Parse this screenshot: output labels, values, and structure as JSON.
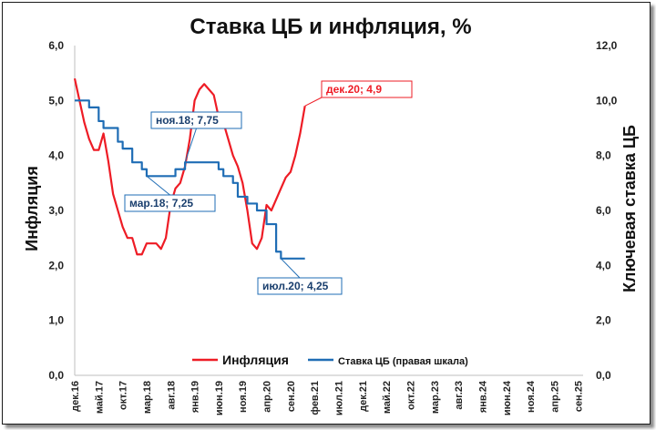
{
  "chart_data": {
    "type": "line",
    "title": "Ставка ЦБ и инфляция, %",
    "ylabel_left": "Инфляция",
    "ylabel_right": "Ключевая ставка ЦБ",
    "left_axis": {
      "min": 0,
      "max": 6,
      "step": 1,
      "tick_labels": [
        "0,0",
        "1,0",
        "2,0",
        "3,0",
        "4,0",
        "5,0",
        "6,0"
      ]
    },
    "right_axis": {
      "min": 0,
      "max": 12,
      "step": 2,
      "tick_labels": [
        "0,0",
        "2,0",
        "4,0",
        "6,0",
        "8,0",
        "10,0",
        "12,0"
      ]
    },
    "x_axis": {
      "start": "2016-12",
      "end": "2025-10",
      "tick_labels": [
        "дек.16",
        "май.17",
        "окт.17",
        "мар.18",
        "авг.18",
        "янв.19",
        "июн.19",
        "ноя.19",
        "апр.20",
        "сен.20",
        "фев.21",
        "июл.21",
        "дек.21",
        "май.22",
        "окт.22",
        "мар.23",
        "авг.23",
        "янв.24",
        "июн.24",
        "ноя.24",
        "апр.25",
        "сен.25"
      ]
    },
    "grid": false,
    "legend_position": "bottom",
    "series": [
      {
        "name": "Инфляция",
        "axis": "left",
        "color": "#ee1c25",
        "x": [
          "2016-12",
          "2017-01",
          "2017-02",
          "2017-03",
          "2017-04",
          "2017-05",
          "2017-06",
          "2017-07",
          "2017-08",
          "2017-09",
          "2017-10",
          "2017-11",
          "2017-12",
          "2018-01",
          "2018-02",
          "2018-03",
          "2018-04",
          "2018-05",
          "2018-06",
          "2018-07",
          "2018-08",
          "2018-09",
          "2018-10",
          "2018-11",
          "2018-12",
          "2019-01",
          "2019-02",
          "2019-03",
          "2019-04",
          "2019-05",
          "2019-06",
          "2019-07",
          "2019-08",
          "2019-09",
          "2019-10",
          "2019-11",
          "2019-12",
          "2020-01",
          "2020-02",
          "2020-03",
          "2020-04",
          "2020-05",
          "2020-06",
          "2020-07",
          "2020-08",
          "2020-09",
          "2020-10",
          "2020-11",
          "2020-12"
        ],
        "values": [
          5.4,
          5.0,
          4.6,
          4.3,
          4.1,
          4.1,
          4.4,
          3.9,
          3.3,
          3.0,
          2.7,
          2.5,
          2.5,
          2.2,
          2.2,
          2.4,
          2.4,
          2.4,
          2.3,
          2.5,
          3.1,
          3.4,
          3.5,
          3.8,
          4.3,
          5.0,
          5.2,
          5.3,
          5.2,
          5.1,
          4.7,
          4.6,
          4.3,
          4.0,
          3.8,
          3.5,
          3.0,
          2.4,
          2.3,
          2.5,
          3.1,
          3.0,
          3.2,
          3.4,
          3.6,
          3.7,
          4.0,
          4.4,
          4.9
        ]
      },
      {
        "name": "Ставка ЦБ (правая шкала)",
        "axis": "right",
        "color": "#1f6db5",
        "x": [
          "2016-12",
          "2017-01",
          "2017-02",
          "2017-03",
          "2017-04",
          "2017-05",
          "2017-06",
          "2017-07",
          "2017-08",
          "2017-09",
          "2017-10",
          "2017-11",
          "2017-12",
          "2018-01",
          "2018-02",
          "2018-03",
          "2018-04",
          "2018-05",
          "2018-06",
          "2018-07",
          "2018-08",
          "2018-09",
          "2018-10",
          "2018-11",
          "2018-12",
          "2019-01",
          "2019-02",
          "2019-03",
          "2019-04",
          "2019-05",
          "2019-06",
          "2019-07",
          "2019-08",
          "2019-09",
          "2019-10",
          "2019-11",
          "2019-12",
          "2020-01",
          "2020-02",
          "2020-03",
          "2020-04",
          "2020-05",
          "2020-06",
          "2020-07",
          "2020-08",
          "2020-09",
          "2020-10",
          "2020-11",
          "2020-12"
        ],
        "values": [
          10.0,
          10.0,
          10.0,
          9.75,
          9.75,
          9.25,
          9.0,
          9.0,
          9.0,
          8.5,
          8.25,
          8.25,
          7.75,
          7.75,
          7.5,
          7.25,
          7.25,
          7.25,
          7.25,
          7.25,
          7.25,
          7.5,
          7.5,
          7.75,
          7.75,
          7.75,
          7.75,
          7.75,
          7.75,
          7.75,
          7.5,
          7.25,
          7.25,
          7.0,
          6.5,
          6.5,
          6.25,
          6.25,
          6.0,
          6.0,
          5.5,
          5.5,
          4.5,
          4.25,
          4.25,
          4.25,
          4.25,
          4.25,
          4.25
        ]
      }
    ],
    "annotations": [
      {
        "text": "дек.20;   4,9",
        "series": 0,
        "x": "2020-12",
        "y": 4.9,
        "color": "#ee1c25"
      },
      {
        "text": "ноя.18;  7,75",
        "series": 1,
        "x": "2018-11",
        "y": 7.75,
        "color": "#1f6db5"
      },
      {
        "text": "мар.18;  7,25",
        "series": 1,
        "x": "2018-03",
        "y": 7.25,
        "color": "#1f6db5"
      },
      {
        "text": "июл.20; 4,25",
        "series": 1,
        "x": "2020-07",
        "y": 4.25,
        "color": "#1f6db5"
      }
    ]
  }
}
